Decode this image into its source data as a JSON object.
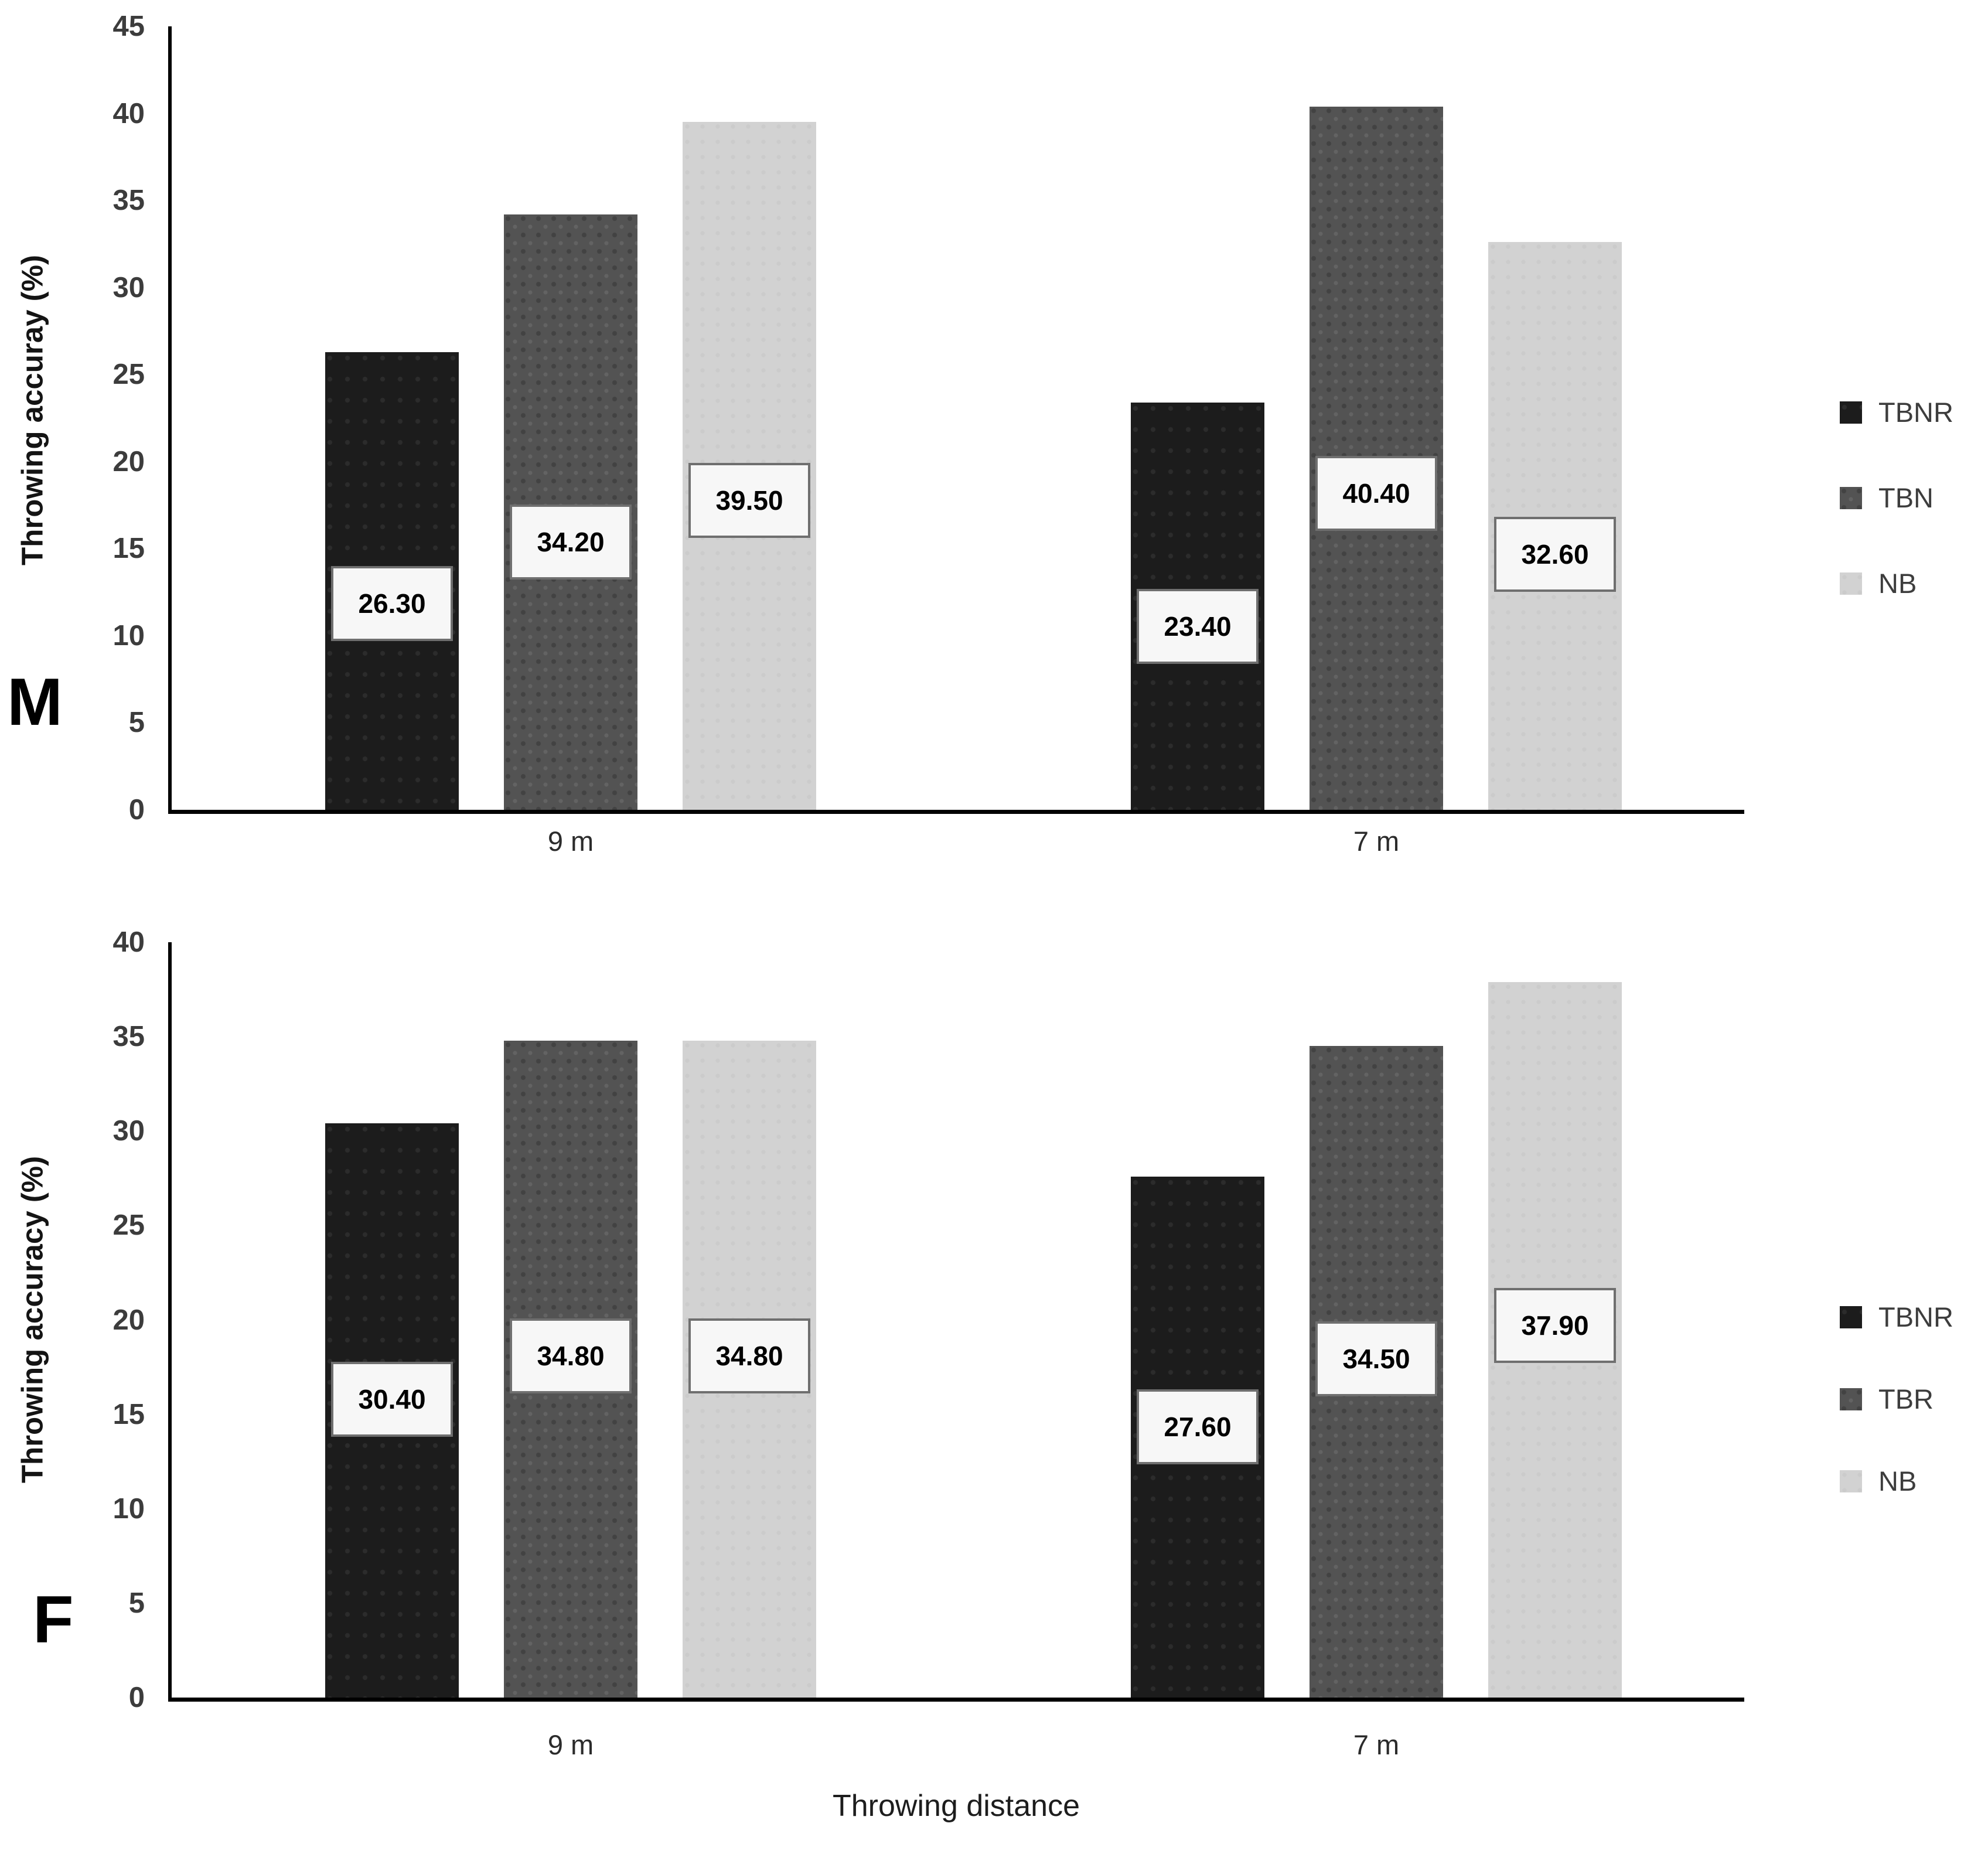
{
  "figure": {
    "background": "#ffffff",
    "colors": {
      "bar_black": "#1c1c1c",
      "bar_dark_gray": "#535353",
      "bar_light_gray": "#d2d2d2",
      "value_label_box_bg": "#f7f7f7",
      "value_label_box_border": "#6f6f6f",
      "axis_line": "#000000",
      "tick_text": "#3c3c3c",
      "legend_text": "#3d3d3d"
    }
  },
  "chart_data": [
    {
      "type": "bar",
      "panel_label": "M",
      "title": "",
      "ylabel": "Throwing accuray (%)",
      "xlabel": "",
      "ylim": [
        0,
        45
      ],
      "ytick_step": 5,
      "ytick_labels": [
        "0",
        "5",
        "10",
        "15",
        "20",
        "25",
        "30",
        "35",
        "40",
        "45"
      ],
      "categories": [
        "9 m",
        "7 m"
      ],
      "series": [
        {
          "name": "TBNR",
          "color": "#1c1c1c",
          "values": [
            26.3,
            23.4
          ],
          "value_labels": [
            "26.30",
            "23.40"
          ]
        },
        {
          "name": "TBN",
          "color": "#535353",
          "values": [
            34.2,
            40.4
          ],
          "value_labels": [
            "34.20",
            "40.40"
          ]
        },
        {
          "name": "NB",
          "color": "#d2d2d2",
          "values": [
            39.5,
            32.6
          ],
          "value_labels": [
            "39.50",
            "32.60"
          ]
        }
      ],
      "legend": [
        "TBNR",
        "TBN",
        "NB"
      ],
      "legend_position": "right",
      "grid": false
    },
    {
      "type": "bar",
      "panel_label": "F",
      "title": "",
      "ylabel": "Throwing accuracy (%)",
      "xlabel": "Throwing distance",
      "ylim": [
        0,
        40
      ],
      "ytick_step": 5,
      "ytick_labels": [
        "0",
        "5",
        "10",
        "15",
        "20",
        "25",
        "30",
        "35",
        "40"
      ],
      "categories": [
        "9 m",
        "7 m"
      ],
      "series": [
        {
          "name": "TBNR",
          "color": "#1c1c1c",
          "values": [
            30.4,
            27.6
          ],
          "value_labels": [
            "30.40",
            "27.60"
          ]
        },
        {
          "name": "TBR",
          "color": "#535353",
          "values": [
            34.8,
            34.5
          ],
          "value_labels": [
            "34.80",
            "34.50"
          ]
        },
        {
          "name": "NB",
          "color": "#d2d2d2",
          "values": [
            34.8,
            37.9
          ],
          "value_labels": [
            "34.80",
            "37.90"
          ]
        }
      ],
      "legend": [
        "TBNR",
        "TBR",
        "NB"
      ],
      "legend_position": "right",
      "grid": false
    }
  ]
}
